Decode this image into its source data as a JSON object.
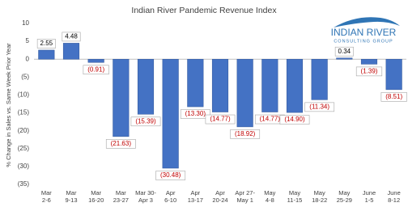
{
  "chart_data": {
    "type": "bar",
    "title": "Indian River Pandemic Revenue Index",
    "y_label": "% Change in Sales vs. Same Week Prior Year",
    "logo": {
      "name": "INDIAN RIVER",
      "tagline": "CONSULTING GROUP"
    },
    "categories": [
      "Mar\n2-6",
      "Mar\n9-13",
      "Mar\n16-20",
      "Mar\n23-27",
      "Mar 30-\nApr 3",
      "Apr\n6-10",
      "Apr\n13-17",
      "Apr\n20-24",
      "Apr 27-\nMay 1",
      "May\n4-8",
      "May\n11-15",
      "May\n18-22",
      "May\n25-29",
      "June\n1-5",
      "June\n8-12"
    ],
    "values": [
      2.55,
      4.48,
      -0.91,
      -21.63,
      -15.39,
      -30.48,
      -13.3,
      -14.77,
      -18.92,
      -14.77,
      -14.9,
      -11.34,
      0.34,
      -1.39,
      -8.51
    ],
    "value_labels": [
      "2.55",
      "4.48",
      "(0.91)",
      "(21.63)",
      "(15.39)",
      "(30.48)",
      "(13.30)",
      "(14.77)",
      "(18.92)",
      "(14.77)",
      "(14.90)",
      "(11.34)",
      "0.34",
      "(1.39)",
      "(8.51)"
    ],
    "color": "#4472c4",
    "ylim": [
      -35,
      10
    ],
    "yticks": [
      10,
      5,
      0,
      {
        "value": -5,
        "label": "(5)"
      },
      {
        "value": -10,
        "label": "(10)"
      },
      {
        "value": -15,
        "label": "(15)"
      },
      {
        "value": -20,
        "label": "(20)"
      },
      {
        "value": -25,
        "label": "(25)"
      },
      {
        "value": -30,
        "label": "(30)"
      },
      {
        "value": -35,
        "label": "(35)"
      }
    ],
    "grid": false
  }
}
